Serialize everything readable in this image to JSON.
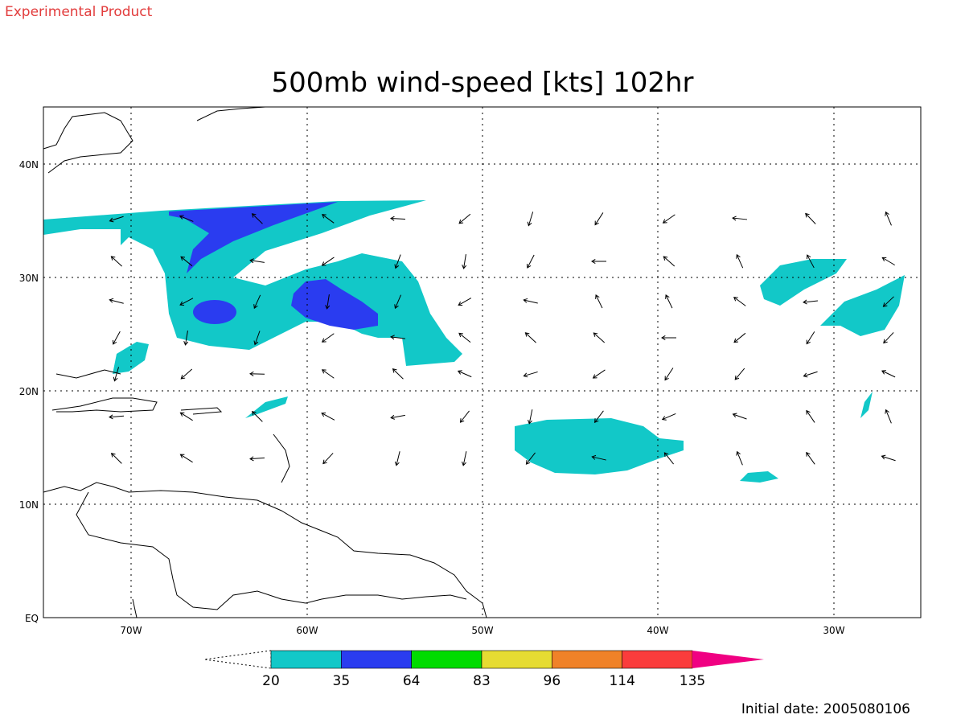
{
  "header": {
    "note": "Experimental Product",
    "title": "500mb wind-speed [kts] 102hr"
  },
  "map": {
    "lat_labels": [
      "40N",
      "30N",
      "20N",
      "10N",
      "EQ"
    ],
    "lon_labels": [
      "70W",
      "60W",
      "50W",
      "40W",
      "30W"
    ]
  },
  "colorbar": {
    "levels": [
      20,
      35,
      64,
      83,
      96,
      114,
      135
    ],
    "colors": [
      "#12c8c8",
      "#2a3cf0",
      "#00dc00",
      "#e6dc32",
      "#f08228",
      "#fa3c3c",
      "#f00082"
    ]
  },
  "footer": {
    "initial_date": "Initial date: 2005080106"
  }
}
